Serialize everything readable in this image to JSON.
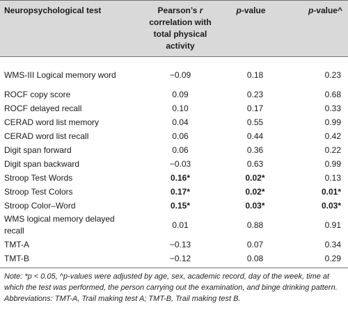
{
  "table": {
    "headers": {
      "test": "Neuropsychological test",
      "pearson_symbol": "r",
      "pearson_pre": "Pearson’s ",
      "pearson_post": " correlation with total physical activity",
      "p_value_italic": "p",
      "p_value_rest": "-value",
      "p_value_adj_italic": "p",
      "p_value_adj_rest": "-value^"
    },
    "rows": [
      {
        "test": "WMS-III Logical memory word",
        "r": "−0.09",
        "p": "0.18",
        "p_adj": "0.23",
        "bold": [
          false,
          false,
          false
        ]
      },
      {
        "test": "ROCF copy score",
        "r": "0.09",
        "p": "0.23",
        "p_adj": "0.68",
        "bold": [
          false,
          false,
          false
        ]
      },
      {
        "test": "ROCF delayed recall",
        "r": "0.10",
        "p": "0.17",
        "p_adj": "0.33",
        "bold": [
          false,
          false,
          false
        ]
      },
      {
        "test": "CERAD word list memory",
        "r": "0.04",
        "p": "0.55",
        "p_adj": "0.99",
        "bold": [
          false,
          false,
          false
        ]
      },
      {
        "test": "CERAD word list recall",
        "r": "0.06",
        "p": "0.44",
        "p_adj": "0.42",
        "bold": [
          false,
          false,
          false
        ]
      },
      {
        "test": "Digit span forward",
        "r": "0.06",
        "p": "0.36",
        "p_adj": "0.22",
        "bold": [
          false,
          false,
          false
        ]
      },
      {
        "test": "Digit span backward",
        "r": "−0.03",
        "p": "0.63",
        "p_adj": "0.99",
        "bold": [
          false,
          false,
          false
        ]
      },
      {
        "test": "Stroop Test Words",
        "r": "0.16*",
        "p": "0.02*",
        "p_adj": "0.13",
        "bold": [
          true,
          true,
          false
        ]
      },
      {
        "test": "Stroop Test Colors",
        "r": "0.17*",
        "p": "0.02*",
        "p_adj": "0.01*",
        "bold": [
          true,
          true,
          true
        ]
      },
      {
        "test": "Stroop Color–Word",
        "r": "0.15*",
        "p": "0.03*",
        "p_adj": "0.03*",
        "bold": [
          true,
          true,
          true
        ]
      },
      {
        "test": "WMS logical memory delayed recall",
        "r": "0.01",
        "p": "0.88",
        "p_adj": "0.91",
        "bold": [
          false,
          false,
          false
        ]
      },
      {
        "test": "TMT-A",
        "r": "−0.13",
        "p": "0.07",
        "p_adj": "0.34",
        "bold": [
          false,
          false,
          false
        ]
      },
      {
        "test": "TMT-B",
        "r": "−0.12",
        "p": "0.08",
        "p_adj": "0.29",
        "bold": [
          false,
          false,
          false
        ]
      }
    ]
  },
  "note": "Note: *p < 0.05, ^p-values were adjusted by age, sex, academic record, day of the week, time at which the test was performed, the person carrying out the examination, and binge drinking pattern. Abbreviations: TMT-A, Trail making test A; TMT-B, Trail making test B."
}
